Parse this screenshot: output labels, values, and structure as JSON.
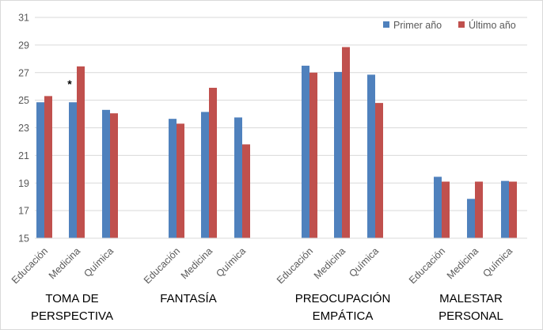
{
  "chart_data": {
    "type": "bar",
    "ylim": [
      15,
      31
    ],
    "ytick_values": [
      15,
      17,
      19,
      21,
      23,
      25,
      27,
      29,
      31
    ],
    "grid": "horizontal",
    "legend_position": "top-right",
    "series": [
      {
        "name": "Primer año",
        "color": "#4f81bd"
      },
      {
        "name": "Último año",
        "color": "#c0504d"
      }
    ],
    "groups": [
      {
        "label_lines": [
          "TOMA DE",
          "PERSPECTIVA"
        ],
        "categories": [
          "Educación",
          "Medicina",
          "Química"
        ],
        "primer": [
          24.85,
          24.85,
          24.3
        ],
        "ultimo": [
          25.3,
          27.45,
          24.05
        ]
      },
      {
        "label_lines": [
          "FANTASÍA"
        ],
        "categories": [
          "Educación",
          "Medicina",
          "Química"
        ],
        "primer": [
          23.65,
          24.15,
          23.75
        ],
        "ultimo": [
          23.3,
          25.9,
          21.8
        ]
      },
      {
        "label_lines": [
          "PREOCUPACIÓN",
          "EMPÁTICA"
        ],
        "categories": [
          "Educación",
          "Medicina",
          "Química"
        ],
        "primer": [
          27.5,
          27.05,
          26.85
        ],
        "ultimo": [
          27.0,
          28.85,
          24.8
        ]
      },
      {
        "label_lines": [
          "MALESTAR",
          "PERSONAL"
        ],
        "categories": [
          "Educación",
          "Medicina",
          "Química"
        ],
        "primer": [
          19.45,
          17.85,
          19.15
        ],
        "ultimo": [
          19.1,
          19.1,
          19.1
        ]
      }
    ],
    "annotations": [
      {
        "text": "*",
        "group": 0,
        "category": 1
      }
    ]
  }
}
